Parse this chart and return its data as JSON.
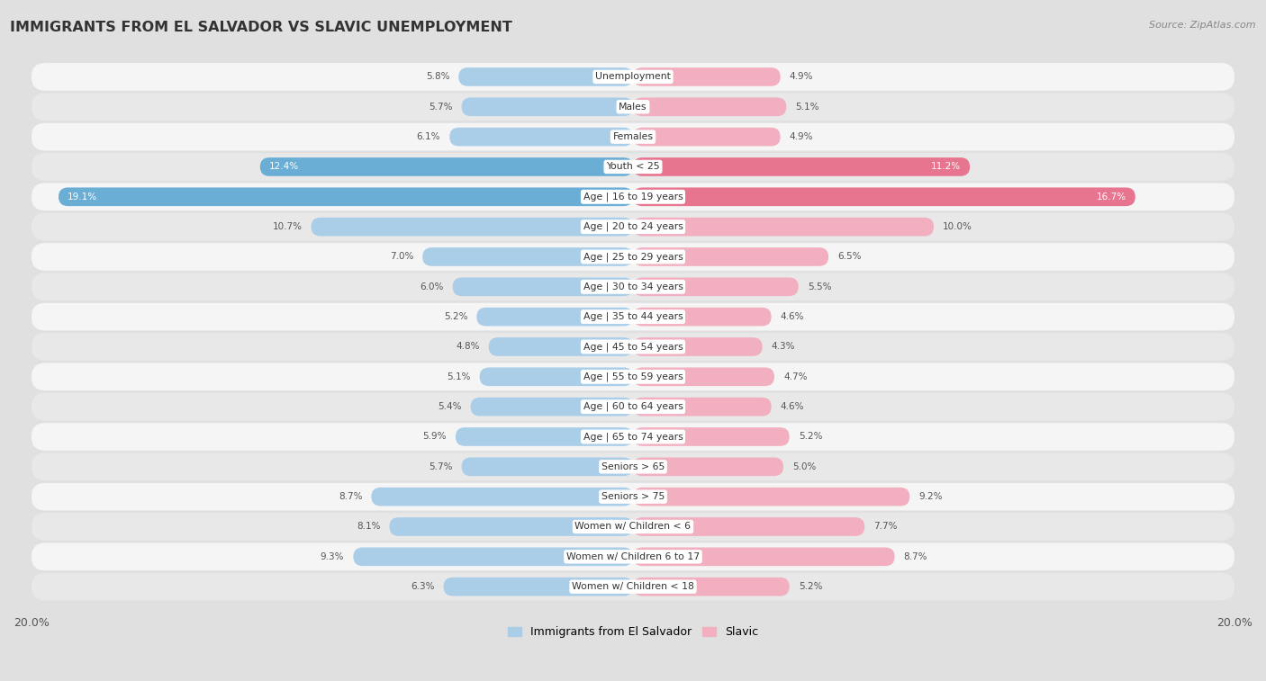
{
  "title": "IMMIGRANTS FROM EL SALVADOR VS SLAVIC UNEMPLOYMENT",
  "source": "Source: ZipAtlas.com",
  "categories": [
    "Unemployment",
    "Males",
    "Females",
    "Youth < 25",
    "Age | 16 to 19 years",
    "Age | 20 to 24 years",
    "Age | 25 to 29 years",
    "Age | 30 to 34 years",
    "Age | 35 to 44 years",
    "Age | 45 to 54 years",
    "Age | 55 to 59 years",
    "Age | 60 to 64 years",
    "Age | 65 to 74 years",
    "Seniors > 65",
    "Seniors > 75",
    "Women w/ Children < 6",
    "Women w/ Children 6 to 17",
    "Women w/ Children < 18"
  ],
  "left_values": [
    5.8,
    5.7,
    6.1,
    12.4,
    19.1,
    10.7,
    7.0,
    6.0,
    5.2,
    4.8,
    5.1,
    5.4,
    5.9,
    5.7,
    8.7,
    8.1,
    9.3,
    6.3
  ],
  "right_values": [
    4.9,
    5.1,
    4.9,
    11.2,
    16.7,
    10.0,
    6.5,
    5.5,
    4.6,
    4.3,
    4.7,
    4.6,
    5.2,
    5.0,
    9.2,
    7.7,
    8.7,
    5.2
  ],
  "left_color_normal": "#aacde8",
  "right_color_normal": "#f2afc0",
  "left_color_highlight": "#6aaed6",
  "right_color_highlight": "#e8758f",
  "highlight_indices": [
    3,
    4
  ],
  "row_color_odd": "#e8e8e8",
  "row_color_even": "#f5f5f5",
  "background_color": "#e0e0e0",
  "max_value": 20.0,
  "legend_left": "Immigrants from El Salvador",
  "legend_right": "Slavic",
  "label_color_normal": "#555555",
  "label_color_highlight": "#ffffff"
}
